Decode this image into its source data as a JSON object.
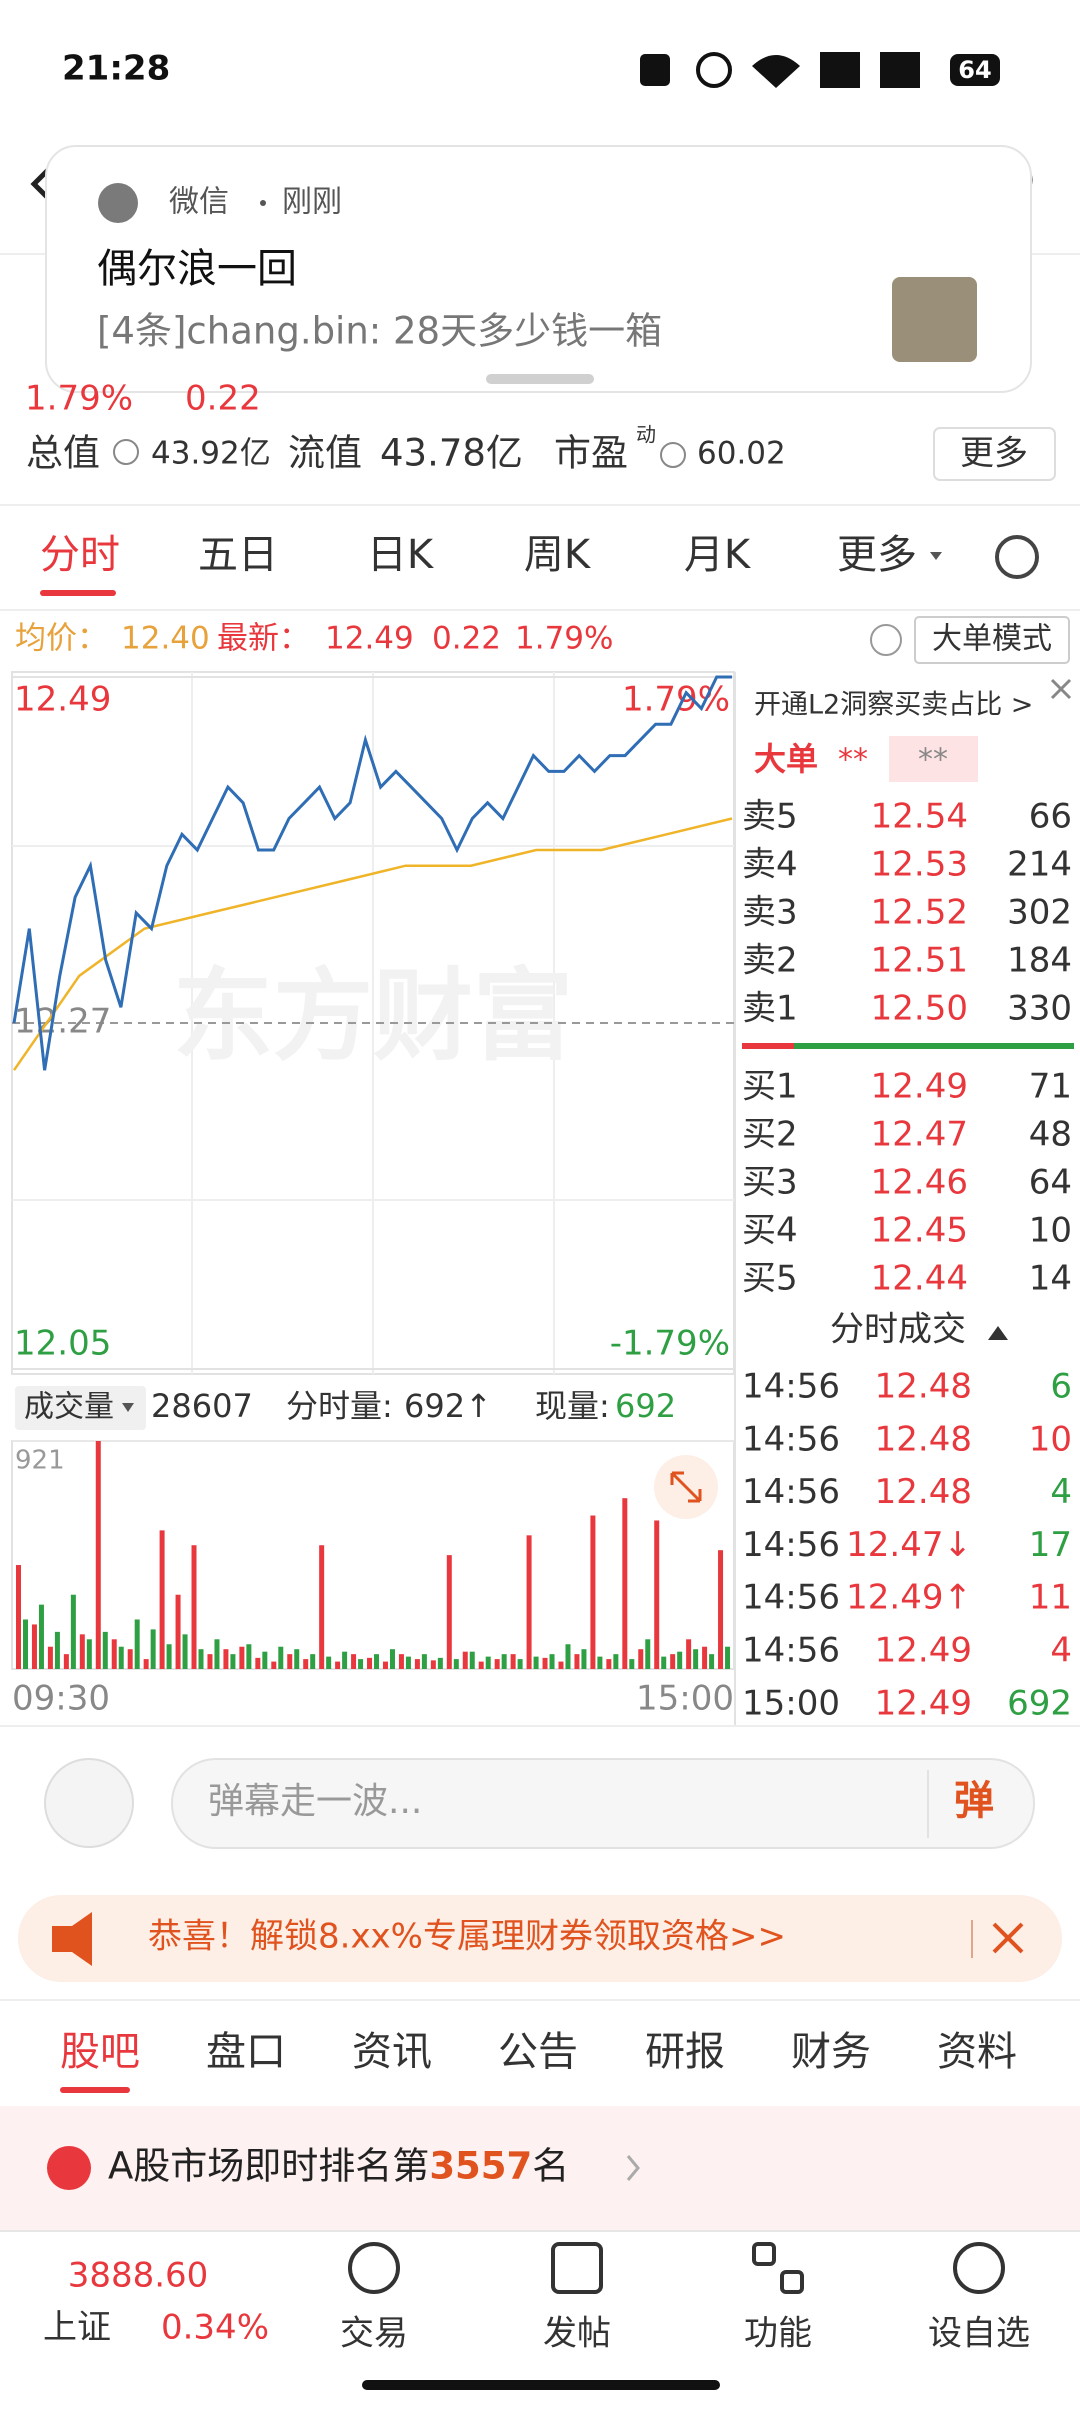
{
  "status_bar": {
    "time": "21:28",
    "battery": "64"
  },
  "notification": {
    "app": "微信",
    "time": "刚刚",
    "title": "偶尔浪一回",
    "message": "[4条]chang.bin: 28天多少钱一箱"
  },
  "quote": {
    "change_pct": "1.79%",
    "change": "0.22",
    "total_value_label": "总值",
    "total_value": "43.92亿",
    "float_value_label": "流值",
    "float_value": "43.78亿",
    "pe_label": "市盈",
    "pe_sup": "动",
    "pe": "60.02",
    "more": "更多"
  },
  "tabs": [
    "分时",
    "五日",
    "日K",
    "周K",
    "月K",
    "更多"
  ],
  "info": {
    "avg_label": "均价：",
    "avg": "12.40",
    "last_label": "最新：",
    "last": "12.49",
    "change": "0.22",
    "change_pct": "1.79%",
    "mode": "大单模式"
  },
  "intraday": {
    "type": "line",
    "price_color": "#2f6db5",
    "avg_color": "#f0b429",
    "price": [
      12.27,
      12.33,
      12.24,
      12.3,
      12.35,
      12.37,
      12.31,
      12.28,
      12.34,
      12.33,
      12.37,
      12.39,
      12.38,
      12.4,
      12.42,
      12.41,
      12.38,
      12.38,
      12.4,
      12.41,
      12.42,
      12.4,
      12.41,
      12.45,
      12.42,
      12.43,
      12.42,
      12.41,
      12.4,
      12.38,
      12.4,
      12.41,
      12.4,
      12.42,
      12.44,
      12.43,
      12.43,
      12.44,
      12.43,
      12.44,
      12.44,
      12.45,
      12.46,
      12.46,
      12.48,
      12.47,
      12.49,
      12.49
    ],
    "avg": [
      12.24,
      12.3,
      12.33,
      12.34,
      12.35,
      12.36,
      12.37,
      12.37,
      12.38,
      12.38,
      12.39,
      12.4
    ],
    "ylim": [
      12.05,
      12.49
    ],
    "yticks": [
      12.49,
      12.27,
      12.05
    ],
    "pct_high": "1.79%",
    "pct_low": "-1.79%",
    "watermark": "东方财富",
    "xticks": [
      "09:30",
      "15:00"
    ]
  },
  "volume": {
    "label": "成交量",
    "total": "28607",
    "minute_label": "分时量:",
    "minute": "692↑",
    "current_label": "现量:",
    "current": "692",
    "ylim": [
      0,
      921
    ],
    "yticks": [
      921
    ],
    "up": {
      "color": "#e8383d",
      "values": [
        420,
        180,
        90,
        60,
        140,
        921,
        120,
        80,
        40,
        560,
        300,
        500,
        60,
        80,
        90,
        45,
        30,
        60,
        40,
        500,
        30,
        60,
        45,
        30,
        60,
        40,
        35,
        460,
        70,
        30,
        40,
        60,
        540,
        45,
        30,
        60,
        620,
        40,
        690,
        80,
        600,
        60,
        120,
        90,
        480
      ]
    },
    "down": {
      "color": "#2ea043",
      "values": [
        200,
        260,
        150,
        300,
        120,
        150,
        90,
        200,
        160,
        100,
        140,
        80,
        120,
        60,
        100,
        70,
        90,
        80,
        60,
        50,
        70,
        40,
        60,
        80,
        50,
        60,
        45,
        40,
        70,
        50,
        60,
        40,
        50,
        60,
        100,
        80,
        50,
        60,
        40,
        120,
        50,
        70,
        80,
        60,
        90
      ]
    }
  },
  "order_book": {
    "banner": "开通L2洞察买卖占比 >",
    "big_label": "大单",
    "big_sell": "**",
    "big_buy": "**",
    "asks": [
      [
        "卖5",
        "12.54",
        "66"
      ],
      [
        "卖4",
        "12.53",
        "214"
      ],
      [
        "卖3",
        "12.52",
        "302"
      ],
      [
        "卖2",
        "12.51",
        "184"
      ],
      [
        "卖1",
        "12.50",
        "330"
      ]
    ],
    "bids": [
      [
        "买1",
        "12.49",
        "71"
      ],
      [
        "买2",
        "12.47",
        "48"
      ],
      [
        "买3",
        "12.46",
        "64"
      ],
      [
        "买4",
        "12.45",
        "10"
      ],
      [
        "买5",
        "12.44",
        "14"
      ]
    ]
  },
  "trades": {
    "title": "分时成交",
    "rows": [
      [
        "14:56",
        "12.48",
        "6"
      ],
      [
        "14:56",
        "12.48",
        "10"
      ],
      [
        "14:56",
        "12.48",
        "4"
      ],
      [
        "14:56",
        "12.47↓",
        "17"
      ],
      [
        "14:56",
        "12.49↑",
        "11"
      ],
      [
        "14:56",
        "12.49",
        "4"
      ],
      [
        "15:00",
        "12.49",
        "692"
      ]
    ]
  },
  "comment": {
    "placeholder": "弹幕走一波...",
    "button": "弹"
  },
  "promo": {
    "text": "恭喜！解锁8.xx%专属理财券领取资格>>"
  },
  "section_tabs": [
    "股吧",
    "盘口",
    "资讯",
    "公告",
    "研报",
    "财务",
    "资料"
  ],
  "rank": {
    "prefix": "A股市场即时排名第",
    "rank": "3557",
    "suffix": "名"
  },
  "bottom_nav": {
    "index_value": "3888.60",
    "index_name": "上证",
    "index_change": "0.34%",
    "items": [
      "交易",
      "发帖",
      "功能",
      "设自选"
    ]
  }
}
